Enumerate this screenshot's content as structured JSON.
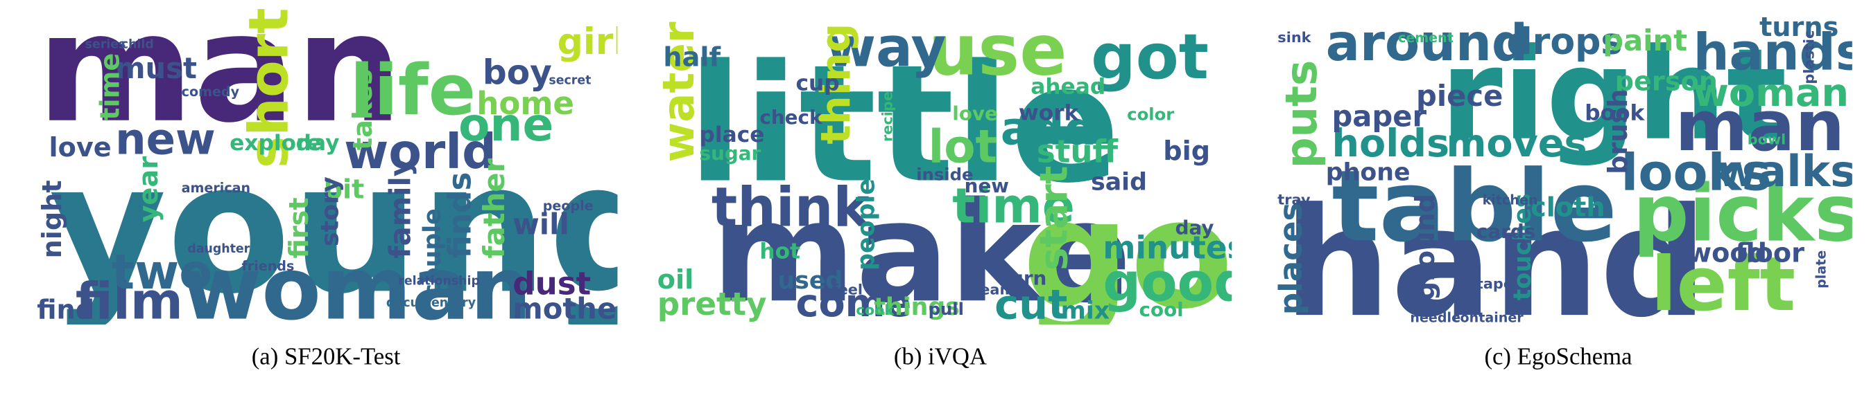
{
  "panels": [
    {
      "caption": "(a) SF20K-Test",
      "words": [
        "man",
        "young",
        "woman",
        "life",
        "short",
        "world",
        "one",
        "new",
        "film",
        "two",
        "girl",
        "boy",
        "home",
        "must",
        "love",
        "find",
        "finds",
        "father",
        "family",
        "couple",
        "takes",
        "dust",
        "will",
        "mother",
        "first",
        "bit",
        "time",
        "night",
        "story",
        "explore",
        "year",
        "day",
        "comedy",
        "american",
        "friends",
        "secret",
        "people",
        "documentary",
        "relationship",
        "daughter",
        "series",
        "child"
      ]
    },
    {
      "caption": "(b) iVQA",
      "words": [
        "little",
        "make",
        "go",
        "got",
        "use",
        "way",
        "think",
        "time",
        "lot",
        "add",
        "good",
        "come",
        "cut",
        "water",
        "thing",
        "start",
        "minutes",
        "stuff",
        "pretty",
        "oil",
        "things",
        "used",
        "people",
        "mix",
        "ahead",
        "work",
        "half",
        "cup",
        "place",
        "sugar",
        "hot",
        "said",
        "big",
        "day",
        "cool",
        "check",
        "love",
        "new",
        "turn",
        "cream",
        "pull",
        "cook",
        "feel",
        "color",
        "inside",
        "recipe"
      ]
    },
    {
      "caption": "(c) EgoSchema",
      "words": [
        "hand",
        "right",
        "table",
        "picks",
        "left",
        "man",
        "hands",
        "around",
        "woman",
        "looks",
        "walks",
        "drops",
        "paint",
        "person",
        "holds",
        "moves",
        "paper",
        "brush",
        "cloth",
        "floor",
        "wood",
        "puts",
        "places",
        "ground",
        "touches",
        "phone",
        "piece",
        "turns",
        "book",
        "cards",
        "tray",
        "sink",
        "cement",
        "plastic",
        "kitchen",
        "bowl",
        "tape",
        "needle",
        "container",
        "plate"
      ]
    }
  ]
}
